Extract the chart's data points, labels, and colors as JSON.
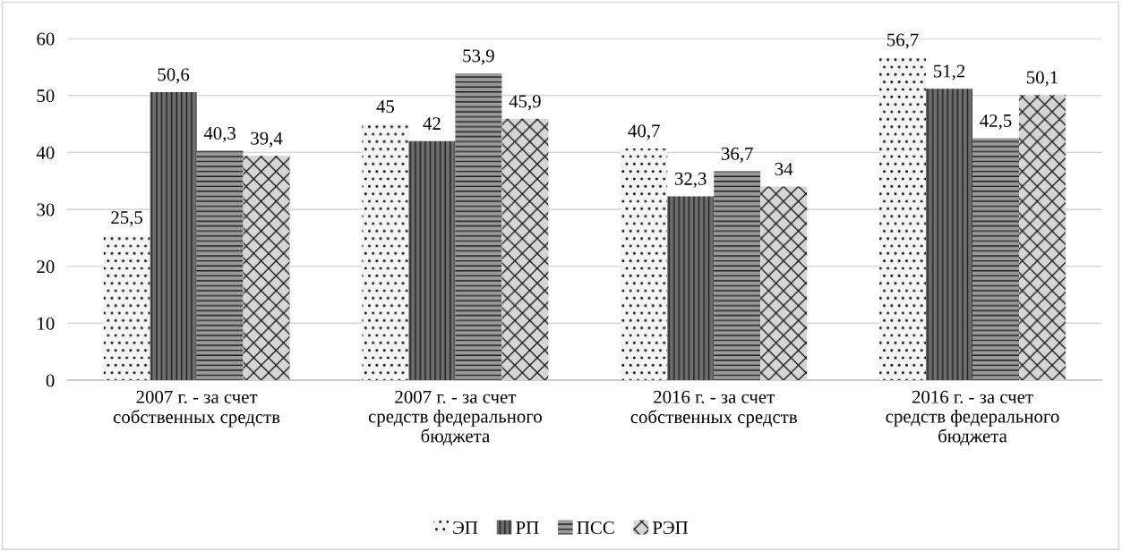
{
  "chart_data": {
    "type": "bar",
    "categories": [
      "2007 г. - за счет\nсобственных средств",
      "2007 г. - за счет\nсредств федерального\nбюджета",
      "2016 г. - за счет\nсобственных средств",
      "2016 г. - за счет\nсредств федерального\nбюджета"
    ],
    "series": [
      {
        "name": "ЭП",
        "color": "#f4f4f4",
        "values": [
          25.5,
          45,
          40.7,
          56.7
        ],
        "value_labels": [
          "25,5",
          "45",
          "40,7",
          "56,7"
        ]
      },
      {
        "name": "РП",
        "color": "#6e6e6e",
        "values": [
          50.6,
          42,
          32.3,
          51.2
        ],
        "value_labels": [
          "50,6",
          "42",
          "32,3",
          "51,2"
        ]
      },
      {
        "name": "ПСС",
        "color": "#9a9a9a",
        "values": [
          40.3,
          53.9,
          36.7,
          42.5
        ],
        "value_labels": [
          "40,3",
          "53,9",
          "36,7",
          "42,5"
        ]
      },
      {
        "name": "РЭП",
        "color": "#d6d6d6",
        "values": [
          39.4,
          45.9,
          34,
          50.1
        ],
        "value_labels": [
          "39,4",
          "45,9",
          "34",
          "50,1"
        ]
      }
    ],
    "ylim": [
      0,
      60
    ],
    "yticks": [
      0,
      10,
      20,
      30,
      40,
      50,
      60
    ],
    "grid": "y",
    "legend": "bottom"
  }
}
